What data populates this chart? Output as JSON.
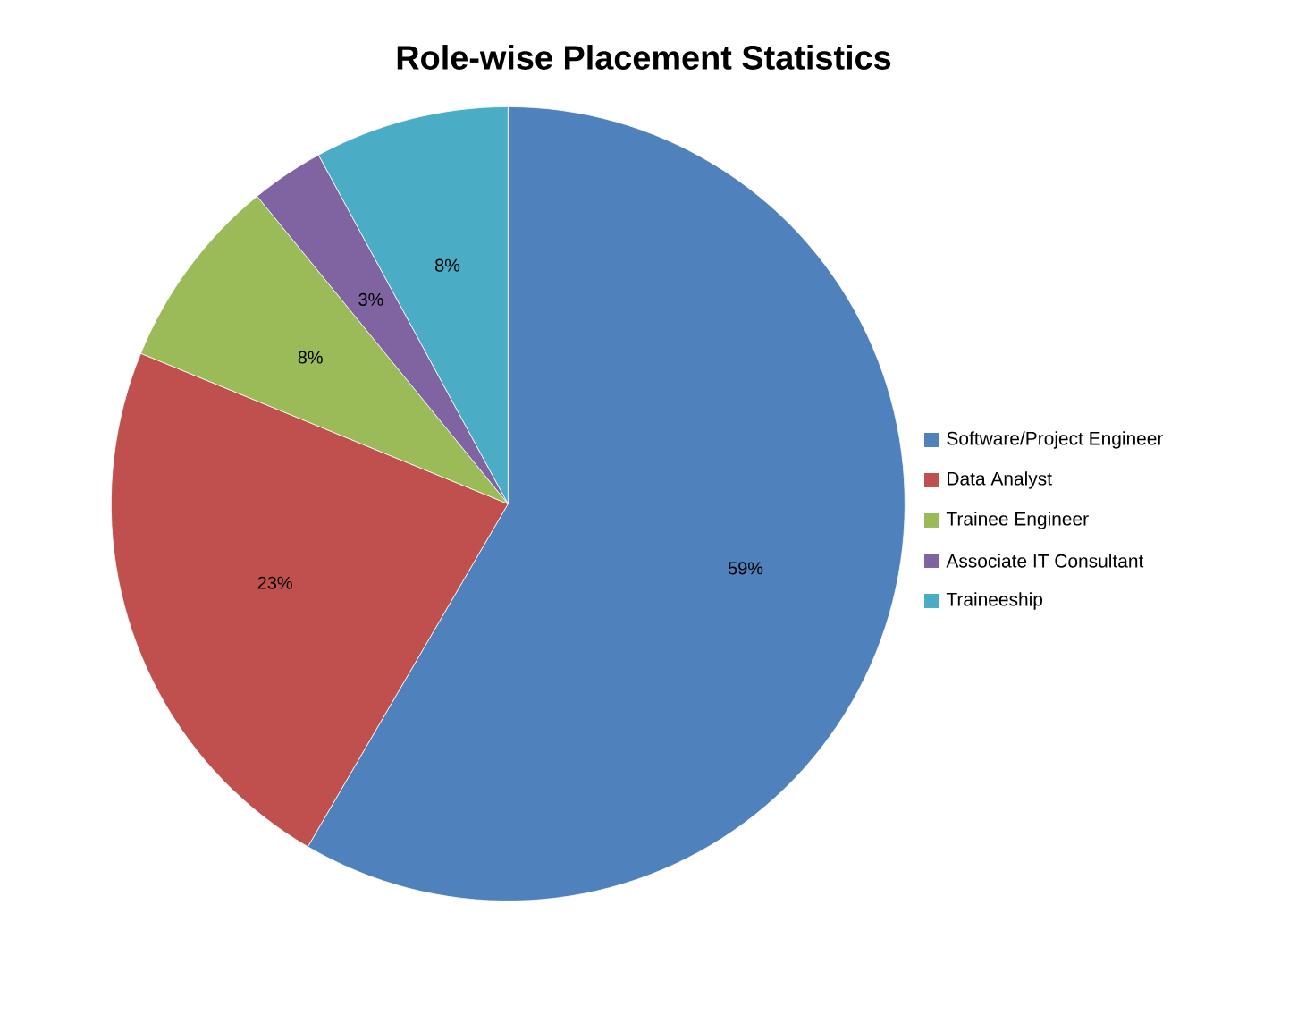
{
  "chart_data": {
    "type": "pie",
    "title": "Role-wise Placement Statistics",
    "categories": [
      "Software/Project Engineer",
      "Data Analyst",
      "Trainee Engineer",
      "Associate IT Consultant",
      "Traineeship"
    ],
    "values": [
      59,
      23,
      8,
      3,
      8
    ],
    "value_labels": [
      "59%",
      "23%",
      "8%",
      "3%",
      "8%"
    ],
    "colors": [
      "#4f81bd",
      "#c0504d",
      "#9bbb59",
      "#8064a2",
      "#4bacc6"
    ],
    "legend": "right"
  }
}
